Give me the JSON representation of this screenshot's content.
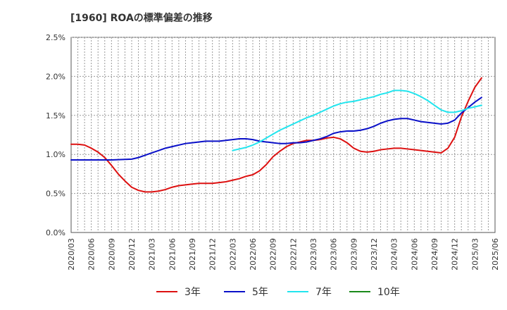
{
  "chart_data": {
    "type": "line",
    "title": "[1960]  ROAの標準偏差の推移",
    "xlabel": "",
    "ylabel": "",
    "ylim": [
      0,
      0.025
    ],
    "grid": true,
    "legend_placement": "bottom",
    "x_ticks": [
      "2020/03",
      "2020/06",
      "2020/09",
      "2020/12",
      "2021/03",
      "2021/06",
      "2021/09",
      "2021/12",
      "2022/03",
      "2022/06",
      "2022/09",
      "2022/12",
      "2023/03",
      "2023/06",
      "2023/09",
      "2023/12",
      "2024/03",
      "2024/06",
      "2024/09",
      "2024/12",
      "2025/03",
      "2025/06"
    ],
    "y_ticks": [
      "0.0%",
      "0.5%",
      "1.0%",
      "1.5%",
      "2.0%",
      "2.5%"
    ],
    "series": [
      {
        "name": "3年",
        "color": "#dd1111",
        "points": [
          [
            "2020/03",
            1.13
          ],
          [
            "2020/04",
            1.13
          ],
          [
            "2020/05",
            1.12
          ],
          [
            "2020/06",
            1.08
          ],
          [
            "2020/07",
            1.03
          ],
          [
            "2020/08",
            0.96
          ],
          [
            "2020/09",
            0.86
          ],
          [
            "2020/10",
            0.75
          ],
          [
            "2020/11",
            0.66
          ],
          [
            "2020/12",
            0.58
          ],
          [
            "2021/01",
            0.54
          ],
          [
            "2021/02",
            0.52
          ],
          [
            "2021/03",
            0.52
          ],
          [
            "2021/04",
            0.53
          ],
          [
            "2021/05",
            0.55
          ],
          [
            "2021/06",
            0.58
          ],
          [
            "2021/07",
            0.6
          ],
          [
            "2021/08",
            0.61
          ],
          [
            "2021/09",
            0.62
          ],
          [
            "2021/10",
            0.63
          ],
          [
            "2021/11",
            0.63
          ],
          [
            "2021/12",
            0.63
          ],
          [
            "2022/01",
            0.64
          ],
          [
            "2022/02",
            0.65
          ],
          [
            "2022/03",
            0.67
          ],
          [
            "2022/04",
            0.69
          ],
          [
            "2022/05",
            0.72
          ],
          [
            "2022/06",
            0.74
          ],
          [
            "2022/07",
            0.79
          ],
          [
            "2022/08",
            0.87
          ],
          [
            "2022/09",
            0.97
          ],
          [
            "2022/10",
            1.04
          ],
          [
            "2022/11",
            1.1
          ],
          [
            "2022/12",
            1.14
          ],
          [
            "2023/01",
            1.16
          ],
          [
            "2023/02",
            1.18
          ],
          [
            "2023/03",
            1.18
          ],
          [
            "2023/04",
            1.19
          ],
          [
            "2023/05",
            1.21
          ],
          [
            "2023/06",
            1.22
          ],
          [
            "2023/07",
            1.2
          ],
          [
            "2023/08",
            1.15
          ],
          [
            "2023/09",
            1.08
          ],
          [
            "2023/10",
            1.04
          ],
          [
            "2023/11",
            1.03
          ],
          [
            "2023/12",
            1.04
          ],
          [
            "2024/01",
            1.06
          ],
          [
            "2024/02",
            1.07
          ],
          [
            "2024/03",
            1.08
          ],
          [
            "2024/04",
            1.08
          ],
          [
            "2024/05",
            1.07
          ],
          [
            "2024/06",
            1.06
          ],
          [
            "2024/07",
            1.05
          ],
          [
            "2024/08",
            1.04
          ],
          [
            "2024/09",
            1.03
          ],
          [
            "2024/10",
            1.02
          ],
          [
            "2024/11",
            1.08
          ],
          [
            "2024/12",
            1.22
          ],
          [
            "2025/01",
            1.48
          ],
          [
            "2025/02",
            1.68
          ],
          [
            "2025/03",
            1.86
          ],
          [
            "2025/03b",
            1.98
          ]
        ]
      },
      {
        "name": "5年",
        "color": "#0a10c8",
        "points": [
          [
            "2020/03",
            0.93
          ],
          [
            "2020/06",
            0.93
          ],
          [
            "2020/09",
            0.93
          ],
          [
            "2020/12",
            0.94
          ],
          [
            "2021/01",
            0.96
          ],
          [
            "2021/02",
            0.99
          ],
          [
            "2021/03",
            1.02
          ],
          [
            "2021/04",
            1.05
          ],
          [
            "2021/05",
            1.08
          ],
          [
            "2021/06",
            1.1
          ],
          [
            "2021/07",
            1.12
          ],
          [
            "2021/08",
            1.14
          ],
          [
            "2021/09",
            1.15
          ],
          [
            "2021/10",
            1.16
          ],
          [
            "2021/11",
            1.17
          ],
          [
            "2021/12",
            1.17
          ],
          [
            "2022/01",
            1.17
          ],
          [
            "2022/02",
            1.18
          ],
          [
            "2022/03",
            1.19
          ],
          [
            "2022/04",
            1.2
          ],
          [
            "2022/05",
            1.2
          ],
          [
            "2022/06",
            1.19
          ],
          [
            "2022/07",
            1.17
          ],
          [
            "2022/08",
            1.16
          ],
          [
            "2022/09",
            1.15
          ],
          [
            "2022/10",
            1.14
          ],
          [
            "2022/11",
            1.14
          ],
          [
            "2022/12",
            1.15
          ],
          [
            "2023/01",
            1.15
          ],
          [
            "2023/02",
            1.16
          ],
          [
            "2023/03",
            1.18
          ],
          [
            "2023/04",
            1.2
          ],
          [
            "2023/05",
            1.23
          ],
          [
            "2023/06",
            1.27
          ],
          [
            "2023/07",
            1.29
          ],
          [
            "2023/08",
            1.3
          ],
          [
            "2023/09",
            1.3
          ],
          [
            "2023/10",
            1.31
          ],
          [
            "2023/11",
            1.33
          ],
          [
            "2023/12",
            1.36
          ],
          [
            "2024/01",
            1.4
          ],
          [
            "2024/02",
            1.43
          ],
          [
            "2024/03",
            1.45
          ],
          [
            "2024/04",
            1.46
          ],
          [
            "2024/05",
            1.46
          ],
          [
            "2024/06",
            1.44
          ],
          [
            "2024/07",
            1.42
          ],
          [
            "2024/08",
            1.41
          ],
          [
            "2024/09",
            1.4
          ],
          [
            "2024/10",
            1.39
          ],
          [
            "2024/11",
            1.4
          ],
          [
            "2024/12",
            1.44
          ],
          [
            "2025/01",
            1.53
          ],
          [
            "2025/02",
            1.6
          ],
          [
            "2025/03",
            1.67
          ],
          [
            "2025/03b",
            1.73
          ]
        ]
      },
      {
        "name": "7年",
        "color": "#22e5ee",
        "points": [
          [
            "2022/03",
            1.05
          ],
          [
            "2022/04",
            1.07
          ],
          [
            "2022/05",
            1.09
          ],
          [
            "2022/06",
            1.12
          ],
          [
            "2022/07",
            1.16
          ],
          [
            "2022/08",
            1.21
          ],
          [
            "2022/09",
            1.26
          ],
          [
            "2022/10",
            1.31
          ],
          [
            "2022/11",
            1.35
          ],
          [
            "2022/12",
            1.39
          ],
          [
            "2023/01",
            1.43
          ],
          [
            "2023/02",
            1.47
          ],
          [
            "2023/03",
            1.5
          ],
          [
            "2023/04",
            1.54
          ],
          [
            "2023/05",
            1.58
          ],
          [
            "2023/06",
            1.62
          ],
          [
            "2023/07",
            1.65
          ],
          [
            "2023/08",
            1.67
          ],
          [
            "2023/09",
            1.68
          ],
          [
            "2023/10",
            1.7
          ],
          [
            "2023/11",
            1.72
          ],
          [
            "2023/12",
            1.74
          ],
          [
            "2024/01",
            1.77
          ],
          [
            "2024/02",
            1.79
          ],
          [
            "2024/03",
            1.82
          ],
          [
            "2024/04",
            1.82
          ],
          [
            "2024/05",
            1.81
          ],
          [
            "2024/06",
            1.78
          ],
          [
            "2024/07",
            1.74
          ],
          [
            "2024/08",
            1.69
          ],
          [
            "2024/09",
            1.63
          ],
          [
            "2024/10",
            1.57
          ],
          [
            "2024/11",
            1.54
          ],
          [
            "2024/12",
            1.54
          ],
          [
            "2025/01",
            1.56
          ],
          [
            "2025/02",
            1.59
          ],
          [
            "2025/03",
            1.61
          ],
          [
            "2025/03b",
            1.63
          ]
        ]
      },
      {
        "name": "10年",
        "color": "#1a8a1a",
        "points": []
      }
    ]
  }
}
